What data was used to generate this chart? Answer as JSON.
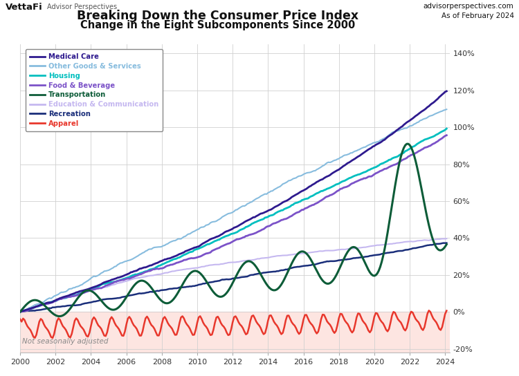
{
  "title_line1": "Breaking Down the Consumer Price Index",
  "title_line2": "Change in the Eight Subcomponents Since 2000",
  "brand_left": "VettaFi",
  "brand_sub": "Advisor Perspectives",
  "brand_right": "advisorperspectives.com\nAs of February 2024",
  "note": "Not seasonally adjusted",
  "ylim": [
    -22,
    145
  ],
  "yticks": [
    -20,
    0,
    20,
    40,
    60,
    80,
    100,
    120,
    140
  ],
  "ytick_labels": [
    "-20%",
    "0%",
    "20%",
    "40%",
    "60%",
    "80%",
    "100%",
    "120%",
    "140%"
  ],
  "xlim": [
    2000,
    2024.25
  ],
  "xticks": [
    2000,
    2002,
    2004,
    2006,
    2008,
    2010,
    2012,
    2014,
    2016,
    2018,
    2020,
    2022,
    2024
  ],
  "series": {
    "Medical Care": {
      "color": "#2E1A8E",
      "lw": 2.0,
      "zorder": 9
    },
    "Other Goods & Services": {
      "color": "#87BCDE",
      "lw": 1.5,
      "zorder": 5
    },
    "Housing": {
      "color": "#00BFBF",
      "lw": 2.0,
      "zorder": 7
    },
    "Food & Beverage": {
      "color": "#7B52C8",
      "lw": 2.0,
      "zorder": 8
    },
    "Transportation": {
      "color": "#0D5C38",
      "lw": 2.2,
      "zorder": 10
    },
    "Education & Communication": {
      "color": "#C5B8F0",
      "lw": 1.5,
      "zorder": 4
    },
    "Recreation": {
      "color": "#1A2E7A",
      "lw": 1.8,
      "zorder": 6
    },
    "Apparel": {
      "color": "#E8372C",
      "lw": 1.8,
      "zorder": 11
    }
  },
  "legend_order": [
    "Medical Care",
    "Other Goods & Services",
    "Housing",
    "Food & Beverage",
    "Transportation",
    "Education & Communication",
    "Recreation",
    "Apparel"
  ],
  "background_below_zero": "#FDDDD8",
  "grid_color": "#D0D0D0",
  "plot_bg": "#FFFFFF",
  "outer_bg": "#FFFFFF"
}
